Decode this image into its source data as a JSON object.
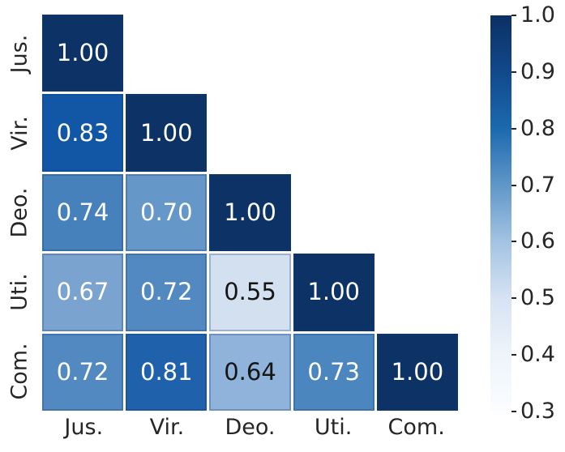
{
  "chart_data": {
    "type": "heatmap",
    "title": "",
    "description": "Lower-triangular correlation matrix heatmap with Blues colormap",
    "categories": [
      "Jus.",
      "Vir.",
      "Deo.",
      "Uti.",
      "Com."
    ],
    "matrix": [
      [
        1.0,
        null,
        null,
        null,
        null
      ],
      [
        0.83,
        1.0,
        null,
        null,
        null
      ],
      [
        0.74,
        0.7,
        1.0,
        null,
        null
      ],
      [
        0.67,
        0.72,
        0.55,
        1.0,
        null
      ],
      [
        0.72,
        0.81,
        0.64,
        0.73,
        1.0
      ]
    ],
    "cell_text": [
      [
        "1.00",
        null,
        null,
        null,
        null
      ],
      [
        "0.83",
        "1.00",
        null,
        null,
        null
      ],
      [
        "0.74",
        "0.70",
        "1.00",
        null,
        null
      ],
      [
        "0.67",
        "0.72",
        "0.55",
        "1.00",
        null
      ],
      [
        "0.72",
        "0.81",
        "0.64",
        "0.73",
        "1.00"
      ]
    ],
    "cell_colors": [
      [
        "#0c3266",
        null,
        null,
        null,
        null
      ],
      [
        "#1257a5",
        "#0c3266",
        null,
        null,
        null
      ],
      [
        "#4681bc",
        "#6598c8",
        "#0c3266",
        null,
        null
      ],
      [
        "#7ba3d0",
        "#5289c1",
        "#d2e0ef",
        "#0c3266",
        null
      ],
      [
        "#5289c1",
        "#1f61ab",
        "#8fb3da",
        "#4c86bf",
        "#0c3266"
      ]
    ],
    "cell_text_colors": [
      [
        "#ffffff",
        null,
        null,
        null,
        null
      ],
      [
        "#ffffff",
        "#ffffff",
        null,
        null,
        null
      ],
      [
        "#ffffff",
        "#ffffff",
        "#ffffff",
        null,
        null
      ],
      [
        "#ffffff",
        "#ffffff",
        "#151515",
        "#ffffff",
        null
      ],
      [
        "#ffffff",
        "#ffffff",
        "#151515",
        "#ffffff",
        "#ffffff"
      ]
    ],
    "colorbar": {
      "vmin": 0.3,
      "vmax": 1.0,
      "tick_labels": [
        "1.0",
        "0.9",
        "0.8",
        "0.7",
        "0.6",
        "0.5",
        "0.4",
        "0.3"
      ],
      "gradient_top_to_bottom": [
        "#0b3064",
        "#11498b",
        "#1c69ae",
        "#5f97c8",
        "#a3c3e3",
        "#d6e3f2",
        "#eef4fb",
        "#fbfdff"
      ],
      "position": "right"
    },
    "grid": false,
    "gridline_color": "#ffffff",
    "tick_label_color": "#262626"
  }
}
